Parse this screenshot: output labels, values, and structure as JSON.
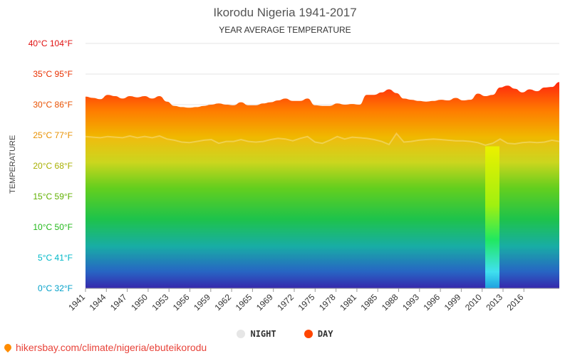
{
  "header": {
    "title": "Ikorodu Nigeria 1941-2017",
    "subtitle": "YEAR AVERAGE TEMPERATURE"
  },
  "axis": {
    "ylabel": "TEMPERATURE"
  },
  "legend": {
    "night_label": "NIGHT",
    "day_label": "DAY"
  },
  "footer": {
    "link_text": "hikersbay.com/climate/nigeria/ebuteikorodu"
  },
  "colors": {
    "night": "#e6e6e6",
    "day": "#ff4500"
  },
  "chart_data": {
    "type": "area",
    "title": "Ikorodu Nigeria 1941-2017",
    "subtitle": "YEAR AVERAGE TEMPERATURE",
    "ylabel": "TEMPERATURE",
    "ylim": [
      0,
      40
    ],
    "y_ticks": [
      {
        "value": 0,
        "label": "0°C 32°F",
        "color": "#00a0c8"
      },
      {
        "value": 5,
        "label": "5°C 41°F",
        "color": "#00b8c8"
      },
      {
        "value": 10,
        "label": "10°C 50°F",
        "color": "#22b81a"
      },
      {
        "value": 15,
        "label": "15°C 59°F",
        "color": "#60b000"
      },
      {
        "value": 20,
        "label": "20°C 68°F",
        "color": "#a8b000"
      },
      {
        "value": 25,
        "label": "25°C 77°F",
        "color": "#e89000"
      },
      {
        "value": 30,
        "label": "30°C 86°F",
        "color": "#e85000"
      },
      {
        "value": 35,
        "label": "35°C 95°F",
        "color": "#e83000"
      },
      {
        "value": 40,
        "label": "40°C 104°F",
        "color": "#e01010"
      }
    ],
    "x_labels": [
      "1941",
      "1944",
      "1947",
      "1950",
      "1953",
      "1956",
      "1959",
      "1962",
      "1965",
      "1969",
      "1972",
      "1975",
      "1978",
      "1981",
      "1985",
      "1988",
      "1993",
      "1996",
      "1999",
      "2010",
      "2013",
      "2016"
    ],
    "grid": true,
    "legend_position": "bottom",
    "series": [
      {
        "name": "DAY",
        "values": [
          31.3,
          31.1,
          30.9,
          31.6,
          31.4,
          31.0,
          31.4,
          31.2,
          31.4,
          31.0,
          31.4,
          30.5,
          29.8,
          29.6,
          29.5,
          29.6,
          29.8,
          30.0,
          30.2,
          30.0,
          29.9,
          30.4,
          29.9,
          29.9,
          30.2,
          30.4,
          30.7,
          31.0,
          30.6,
          30.6,
          31.0,
          29.9,
          29.8,
          29.8,
          30.2,
          30.0,
          30.1,
          30.0,
          31.6,
          31.6,
          32.0,
          32.5,
          31.9,
          31.0,
          30.8,
          30.6,
          30.5,
          30.6,
          30.8,
          30.7,
          31.1,
          30.7,
          30.8,
          31.8,
          31.4,
          31.6,
          32.8,
          33.1,
          32.6,
          32.0,
          32.5,
          32.2,
          32.8,
          32.9,
          33.7
        ]
      },
      {
        "name": "NIGHT",
        "values": [
          24.8,
          24.7,
          24.6,
          24.8,
          24.7,
          24.6,
          24.9,
          24.6,
          24.8,
          24.6,
          24.9,
          24.4,
          24.2,
          23.9,
          23.8,
          24.0,
          24.2,
          24.3,
          23.7,
          24.0,
          24.0,
          24.3,
          24.0,
          23.9,
          24.0,
          24.3,
          24.5,
          24.4,
          24.1,
          24.5,
          24.8,
          23.9,
          23.7,
          24.2,
          24.8,
          24.4,
          24.7,
          24.6,
          24.5,
          24.3,
          24.0,
          23.5,
          25.3,
          23.9,
          24.0,
          24.2,
          24.3,
          24.4,
          24.3,
          24.2,
          24.1,
          24.1,
          24.0,
          23.8,
          23.4,
          23.7,
          24.4,
          23.7,
          23.6,
          23.8,
          23.9,
          23.8,
          23.9,
          24.2,
          24.0
        ]
      }
    ],
    "annotations": [
      {
        "note": "data gap between 1999 and 2010 shown as a low narrow band"
      }
    ]
  }
}
